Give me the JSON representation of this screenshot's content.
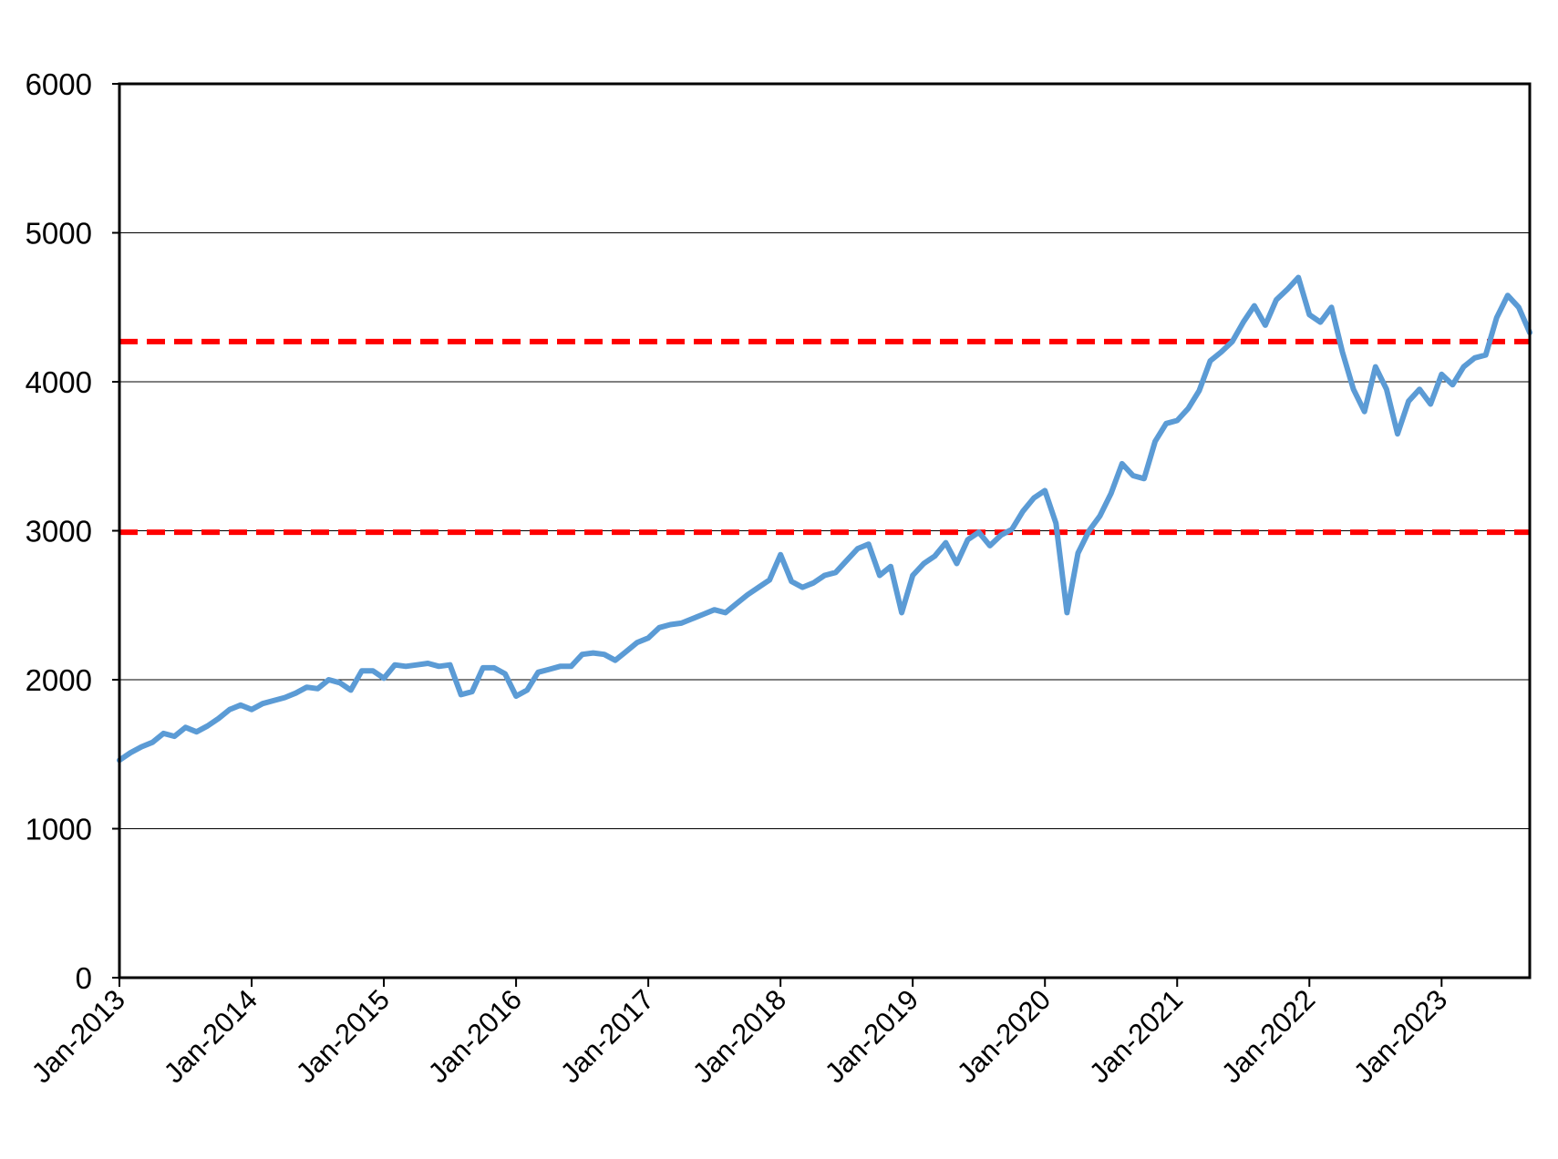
{
  "chart_data": {
    "type": "line",
    "title": "",
    "xlabel": "",
    "ylabel": "",
    "ylim": [
      0,
      6000
    ],
    "xlim": [
      "2013-01",
      "2023-09"
    ],
    "grid": "horizontal",
    "legend": "none",
    "y_ticks": [
      0,
      1000,
      2000,
      3000,
      4000,
      5000,
      6000
    ],
    "y_tick_labels": [
      "0",
      "1000",
      "2000",
      "3000",
      "4000",
      "5000",
      "6000"
    ],
    "x_ticks": [
      "2013-01",
      "2014-01",
      "2015-01",
      "2016-01",
      "2017-01",
      "2018-01",
      "2019-01",
      "2020-01",
      "2021-01",
      "2022-01",
      "2023-01"
    ],
    "x_tick_labels": [
      "Jan-2013",
      "Jan-2014",
      "Jan-2015",
      "Jan-2016",
      "Jan-2017",
      "Jan-2018",
      "Jan-2019",
      "Jan-2020",
      "Jan-2021",
      "Jan-2022",
      "Jan-2023"
    ],
    "series": [
      {
        "color": "#5B9BD5",
        "x": [
          "2013-01",
          "2013-02",
          "2013-03",
          "2013-04",
          "2013-05",
          "2013-06",
          "2013-07",
          "2013-08",
          "2013-09",
          "2013-10",
          "2013-11",
          "2013-12",
          "2014-01",
          "2014-02",
          "2014-03",
          "2014-04",
          "2014-05",
          "2014-06",
          "2014-07",
          "2014-08",
          "2014-09",
          "2014-10",
          "2014-11",
          "2014-12",
          "2015-01",
          "2015-02",
          "2015-03",
          "2015-04",
          "2015-05",
          "2015-06",
          "2015-07",
          "2015-08",
          "2015-09",
          "2015-10",
          "2015-11",
          "2015-12",
          "2016-01",
          "2016-02",
          "2016-03",
          "2016-04",
          "2016-05",
          "2016-06",
          "2016-07",
          "2016-08",
          "2016-09",
          "2016-10",
          "2016-11",
          "2016-12",
          "2017-01",
          "2017-02",
          "2017-03",
          "2017-04",
          "2017-05",
          "2017-06",
          "2017-07",
          "2017-08",
          "2017-09",
          "2017-10",
          "2017-11",
          "2017-12",
          "2018-01",
          "2018-02",
          "2018-03",
          "2018-04",
          "2018-05",
          "2018-06",
          "2018-07",
          "2018-08",
          "2018-09",
          "2018-10",
          "2018-11",
          "2018-12",
          "2019-01",
          "2019-02",
          "2019-03",
          "2019-04",
          "2019-05",
          "2019-06",
          "2019-07",
          "2019-08",
          "2019-09",
          "2019-10",
          "2019-11",
          "2019-12",
          "2020-01",
          "2020-02",
          "2020-03",
          "2020-04",
          "2020-05",
          "2020-06",
          "2020-07",
          "2020-08",
          "2020-09",
          "2020-10",
          "2020-11",
          "2020-12",
          "2021-01",
          "2021-02",
          "2021-03",
          "2021-04",
          "2021-05",
          "2021-06",
          "2021-07",
          "2021-08",
          "2021-09",
          "2021-10",
          "2021-11",
          "2021-12",
          "2022-01",
          "2022-02",
          "2022-03",
          "2022-04",
          "2022-05",
          "2022-06",
          "2022-07",
          "2022-08",
          "2022-09",
          "2022-10",
          "2022-11",
          "2022-12",
          "2023-01",
          "2023-02",
          "2023-03",
          "2023-04",
          "2023-05",
          "2023-06",
          "2023-07",
          "2023-08",
          "2023-09"
        ],
        "y": [
          1460,
          1510,
          1550,
          1580,
          1640,
          1620,
          1680,
          1650,
          1690,
          1740,
          1800,
          1830,
          1800,
          1840,
          1860,
          1880,
          1910,
          1950,
          1940,
          2000,
          1980,
          1930,
          2060,
          2060,
          2010,
          2100,
          2090,
          2100,
          2110,
          2090,
          2100,
          1900,
          1920,
          2080,
          2080,
          2040,
          1890,
          1930,
          2050,
          2070,
          2090,
          2090,
          2170,
          2180,
          2170,
          2130,
          2190,
          2250,
          2280,
          2350,
          2370,
          2380,
          2410,
          2440,
          2470,
          2450,
          2510,
          2570,
          2620,
          2670,
          2840,
          2660,
          2620,
          2650,
          2700,
          2720,
          2800,
          2880,
          2910,
          2700,
          2760,
          2450,
          2700,
          2780,
          2830,
          2920,
          2780,
          2940,
          2990,
          2900,
          2970,
          3010,
          3130,
          3220,
          3270,
          3050,
          2450,
          2850,
          3000,
          3100,
          3250,
          3450,
          3370,
          3350,
          3600,
          3720,
          3740,
          3820,
          3940,
          4140,
          4200,
          4270,
          4400,
          4510,
          4380,
          4550,
          4620,
          4700,
          4450,
          4400,
          4500,
          4200,
          3950,
          3800,
          4100,
          3950,
          3650,
          3870,
          3950,
          3850,
          4050,
          3980,
          4100,
          4160,
          4180,
          4430,
          4580,
          4500,
          4330
        ]
      }
    ],
    "reference_lines": [
      {
        "y": 4270,
        "color": "#FF0000",
        "style": "dashed"
      },
      {
        "y": 2990,
        "color": "#FF0000",
        "style": "dashed"
      }
    ]
  }
}
